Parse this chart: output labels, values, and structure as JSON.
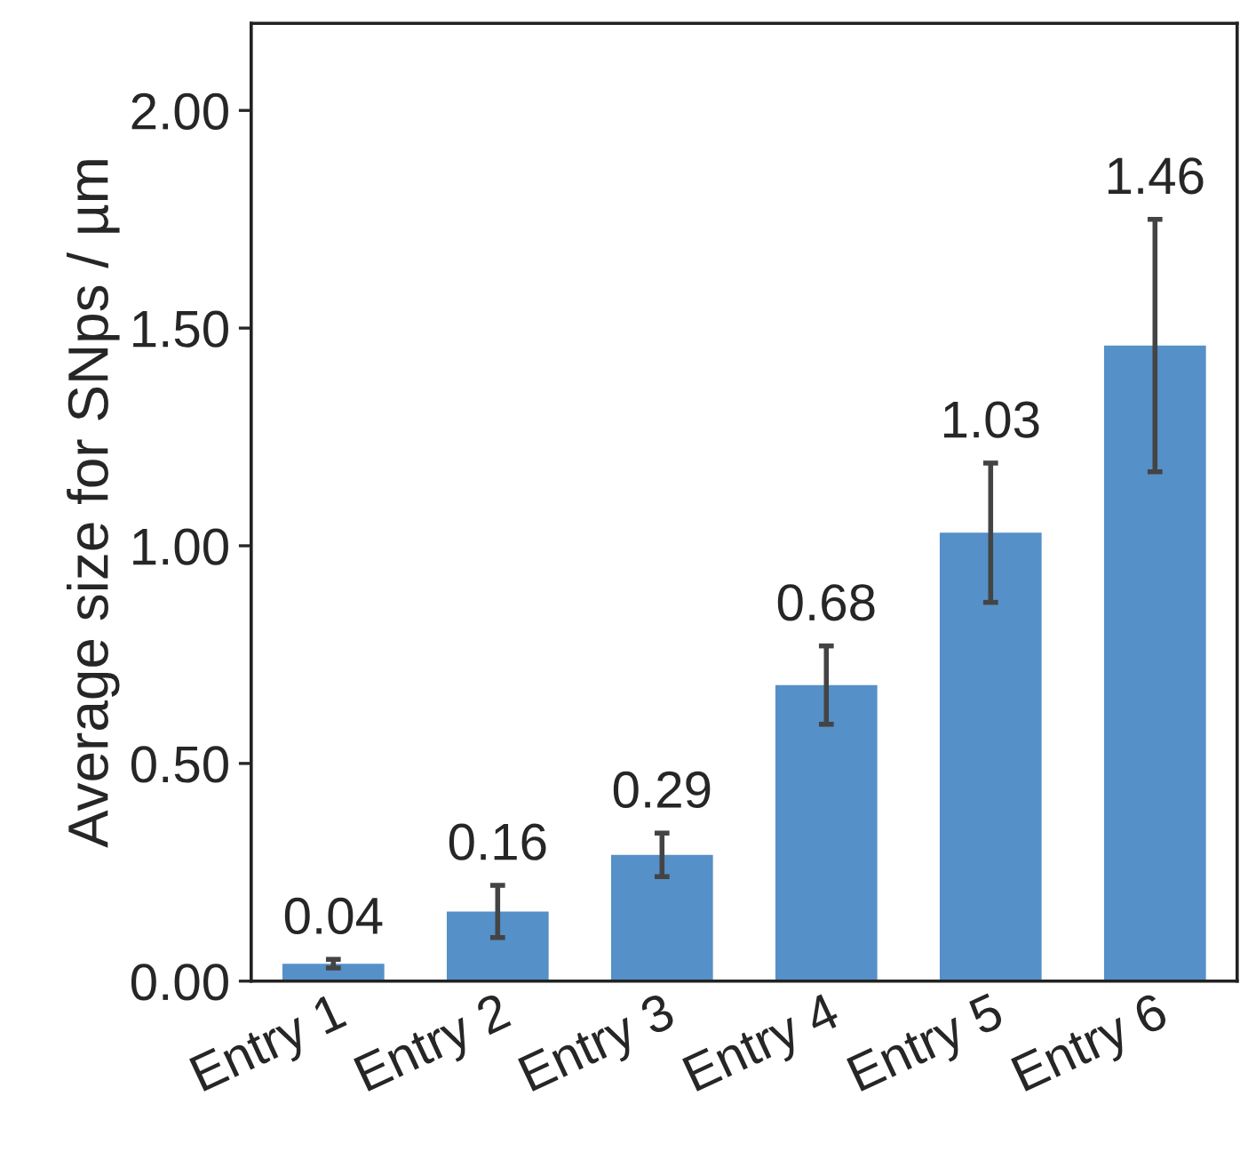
{
  "chart_data": {
    "type": "bar",
    "ylabel": "Average size for SNps / µm",
    "categories": [
      "Entry 1",
      "Entry 2",
      "Entry 3",
      "Entry 4",
      "Entry 5",
      "Entry 6"
    ],
    "values": [
      0.04,
      0.16,
      0.29,
      0.68,
      1.03,
      1.46
    ],
    "errors": [
      0.01,
      0.06,
      0.05,
      0.09,
      0.16,
      0.29
    ],
    "color": "#5590c8",
    "data_labels": true,
    "ylim": [
      0,
      2.2
    ],
    "yticks": [
      {
        "value": 0,
        "label": "0.00"
      },
      {
        "value": 0.5,
        "label": "0.50"
      },
      {
        "value": 1.0,
        "label": "1.00"
      },
      {
        "value": 1.5,
        "label": "1.50"
      },
      {
        "value": 2.0,
        "label": "2.00"
      }
    ],
    "grid": false,
    "legend": false
  }
}
